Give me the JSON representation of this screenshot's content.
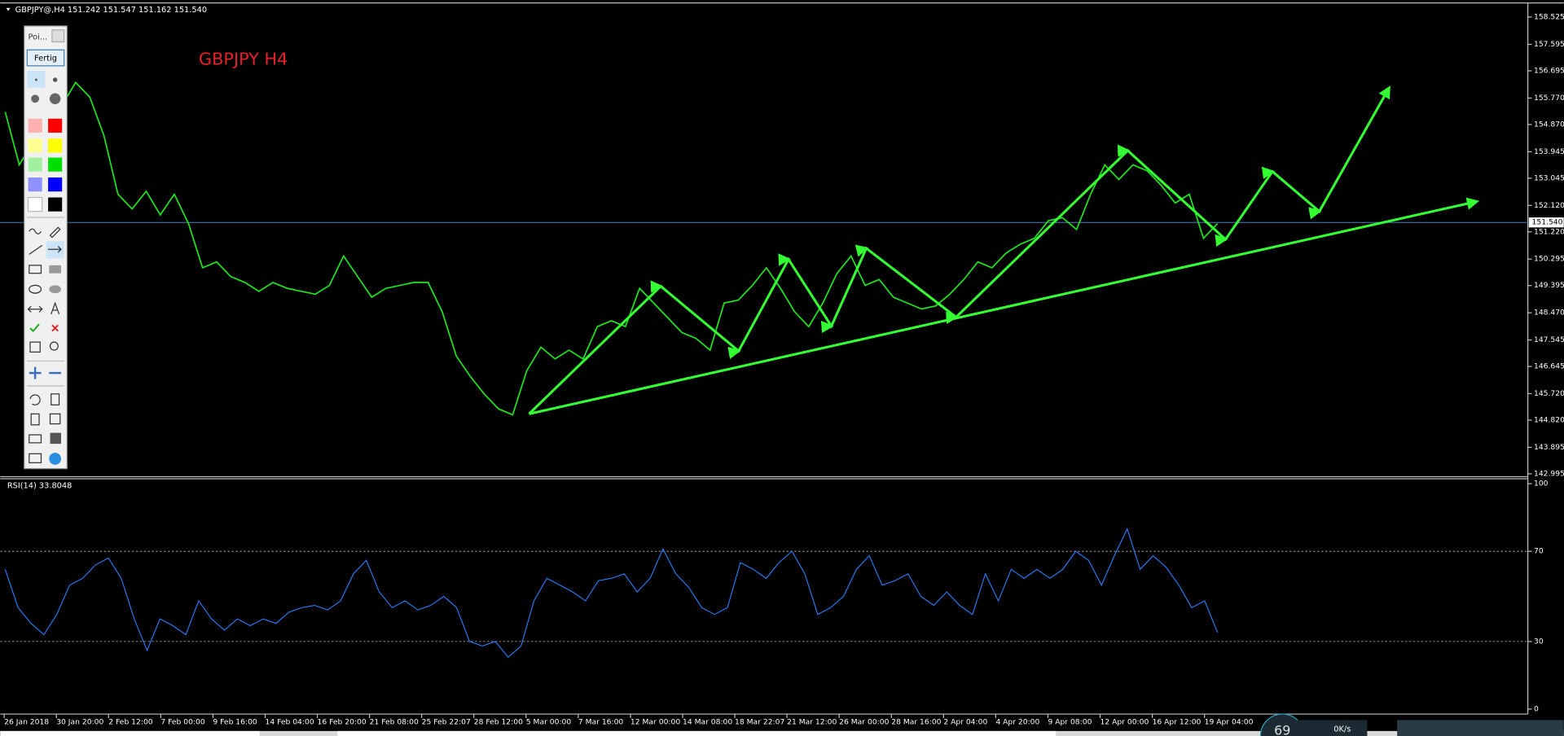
{
  "header": {
    "symbol_info": "GBPJPY@,H4  151.242 151.547 151.162 151.540"
  },
  "chart_label": "GBPJPY  H4",
  "toolbar": {
    "title": "Poi...",
    "button": "Fertig"
  },
  "status": {
    "gauge": "69",
    "speed": "0K/s"
  },
  "price_chart": {
    "type": "line",
    "color": "#1ee61e",
    "ylim": [
      142.93,
      158.9
    ],
    "yticks": [
      158.525,
      157.595,
      156.695,
      {
        "value": 155.77,
        "label": "155.770"
      },
      {
        "value": 154.87,
        "label": "154.870"
      },
      153.945,
      153.045,
      {
        "value": 152.12,
        "label": "152.120"
      },
      {
        "value": 151.22,
        "label": "151.220"
      },
      150.295,
      149.395,
      {
        "value": 148.47,
        "label": "148.470"
      },
      147.545,
      146.645,
      {
        "value": 145.72,
        "label": "145.720"
      },
      {
        "value": 144.82,
        "label": "144.820"
      },
      143.895,
      142.995
    ],
    "last": {
      "value": 151.54,
      "label": "151.540"
    },
    "last_color": "#4a7fbf",
    "categories": [
      "26 Jan 2018",
      "30 Jan 20:00",
      "2 Feb 12:00",
      "7 Feb 00:00",
      "9 Feb 16:00",
      "14 Feb 04:00",
      "16 Feb 20:00",
      "21 Feb 08:00",
      "25 Feb 22:07",
      "28 Feb 12:00",
      "5 Mar 00:00",
      "7 Mar 16:00",
      "12 Mar 00:00",
      "14 Mar 08:00",
      "18 Mar 22:07",
      "21 Mar 12:00",
      "26 Mar 00:00",
      "28 Mar 16:00",
      "2 Apr 04:00",
      "4 Apr 20:00",
      "9 Apr 08:00",
      "12 Apr 00:00",
      "16 Apr 12:00",
      "19 Apr 04:00"
    ],
    "values": [
      155.3,
      153.5,
      154.3,
      154.5,
      155.5,
      156.3,
      155.8,
      154.5,
      152.5,
      152.0,
      152.6,
      151.8,
      152.5,
      151.5,
      150.0,
      150.2,
      149.7,
      149.5,
      149.2,
      149.5,
      149.3,
      149.2,
      149.1,
      149.4,
      150.4,
      149.7,
      149.0,
      149.3,
      149.4,
      149.5,
      149.5,
      148.5,
      147.0,
      146.3,
      145.7,
      145.2,
      145.0,
      146.5,
      147.3,
      146.9,
      147.2,
      146.9,
      148.0,
      148.2,
      148.0,
      149.3,
      148.8,
      148.3,
      147.8,
      147.6,
      147.2,
      148.8,
      148.9,
      149.4,
      150.0,
      149.3,
      148.5,
      148.0,
      148.8,
      149.8,
      150.4,
      149.4,
      149.6,
      149.0,
      148.8,
      148.6,
      148.7,
      149.1,
      149.6,
      150.2,
      150.0,
      150.5,
      150.8,
      151.0,
      151.6,
      151.7,
      151.3,
      152.5,
      153.5,
      153.0,
      153.5,
      153.3,
      152.8,
      152.2,
      152.5,
      151.0,
      151.5
    ]
  },
  "rsi_chart": {
    "type": "line",
    "label": "RSI(14) 33.8048",
    "color": "#2a7fff",
    "ylim": [
      0,
      100
    ],
    "yticks": [
      0,
      30,
      70,
      100
    ],
    "levels": [
      30,
      70
    ],
    "values": [
      62,
      45,
      38,
      33,
      42,
      55,
      58,
      64,
      67,
      58,
      40,
      26,
      40,
      37,
      33,
      48,
      40,
      35,
      40,
      37,
      40,
      38,
      43,
      45,
      46,
      44,
      48,
      60,
      66,
      52,
      45,
      48,
      44,
      46,
      50,
      45,
      30,
      28,
      30,
      23,
      28,
      48,
      58,
      55,
      52,
      48,
      57,
      58,
      60,
      52,
      58,
      71,
      60,
      54,
      45,
      42,
      45,
      65,
      62,
      58,
      65,
      70,
      60,
      42,
      45,
      50,
      62,
      68,
      55,
      57,
      60,
      50,
      46,
      52,
      46,
      42,
      60,
      48,
      62,
      58,
      62,
      58,
      62,
      70,
      66,
      55,
      68,
      80,
      62,
      68,
      63,
      55,
      45,
      48,
      34
    ]
  }
}
